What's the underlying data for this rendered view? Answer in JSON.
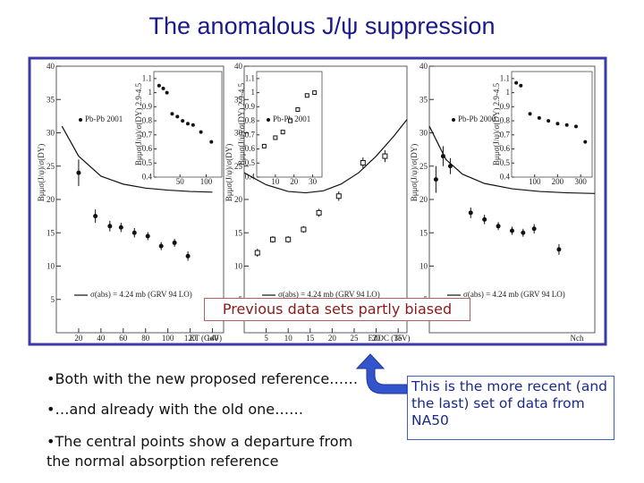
{
  "title": "The anomalous J/ψ suppression",
  "figure": {
    "y_label": "Bμμσ(J/ψ)/σ(DY)",
    "inset_y_label": "Bμμσ(J/ψ)/σ(DY) 2.9-4.5",
    "model": "σ(abs) = 4.24 mb (GRV 94 LO)",
    "panels": [
      {
        "x_label": "ET (GeV)",
        "legend": "Pb-Pb 2001",
        "xlim": [
          0,
          150
        ],
        "ylim": [
          0,
          40
        ],
        "xticks": [
          20,
          40,
          60,
          80,
          100,
          120,
          140
        ],
        "yticks": [
          5,
          10,
          15,
          20,
          25,
          30,
          35,
          40
        ],
        "points": {
          "x": [
            20,
            35,
            48,
            58,
            70,
            82,
            94,
            106,
            118
          ],
          "y": [
            24,
            17.5,
            16,
            15.8,
            15,
            14.5,
            13,
            13.5,
            11.5
          ],
          "err": [
            2,
            1,
            0.8,
            0.7,
            0.7,
            0.6,
            0.6,
            0.6,
            0.7
          ]
        },
        "curve": {
          "x": [
            5,
            20,
            40,
            60,
            80,
            100,
            120,
            140
          ],
          "y": [
            31,
            26.5,
            23.5,
            22.3,
            21.7,
            21.4,
            21.2,
            21.1
          ]
        },
        "inset": {
          "xlim": [
            0,
            130
          ],
          "ylim": [
            0.4,
            1.15
          ],
          "xticks": [
            50,
            100
          ],
          "yticks": [
            0.4,
            0.5,
            0.6,
            0.7,
            0.8,
            0.9,
            1,
            1.1
          ],
          "x": [
            10,
            18,
            25,
            35,
            45,
            55,
            65,
            75,
            90,
            110
          ],
          "y": [
            1.05,
            1.03,
            1.0,
            0.85,
            0.83,
            0.8,
            0.78,
            0.77,
            0.72,
            0.65
          ]
        }
      },
      {
        "x_label": "EZDC (TeV)",
        "legend": "Pb-Pb 2001",
        "xlim": [
          0,
          37
        ],
        "ylim": [
          0,
          40
        ],
        "xticks": [
          5,
          10,
          15,
          20,
          25,
          30,
          35
        ],
        "yticks": [
          5,
          10,
          15,
          20,
          25,
          30,
          35,
          40
        ],
        "points": {
          "x": [
            3,
            6.5,
            10,
            13.5,
            17,
            21.5,
            27,
            32
          ],
          "y": [
            12,
            14,
            14,
            15.5,
            18,
            20.5,
            25.5,
            26.5
          ],
          "err": [
            0.6,
            0.5,
            0.5,
            0.5,
            0.6,
            0.7,
            0.8,
            0.9
          ]
        },
        "curve": {
          "x": [
            0,
            5,
            10,
            14,
            18,
            22,
            26,
            30,
            34,
            37
          ],
          "y": [
            24,
            22.2,
            21.2,
            21,
            21.3,
            22.3,
            24,
            26.5,
            29.5,
            32
          ]
        },
        "inset": {
          "xlim": [
            0,
            35
          ],
          "ylim": [
            0.4,
            1.15
          ],
          "xticks": [
            10,
            20,
            30
          ],
          "yticks": [
            0.4,
            0.5,
            0.6,
            0.7,
            0.8,
            0.9,
            1,
            1.1
          ],
          "x": [
            4,
            10,
            14,
            18,
            22,
            27,
            31
          ],
          "y": [
            0.62,
            0.68,
            0.72,
            0.8,
            0.88,
            0.98,
            1.0
          ]
        }
      },
      {
        "x_label": "Nch",
        "legend": "Pb-Pb 2000",
        "xlim": [
          0,
          300
        ],
        "ylim": [
          0,
          40
        ],
        "xticks": [],
        "yticks": [
          5,
          10,
          15,
          20,
          25,
          30,
          35,
          40
        ],
        "points": {
          "x": [
            12,
            25,
            38,
            75,
            100,
            125,
            150,
            170,
            190,
            235
          ],
          "y": [
            23,
            26.5,
            25,
            18,
            17,
            16,
            15.3,
            15,
            15.6,
            12.5
          ],
          "err": [
            2,
            1.5,
            1.2,
            0.8,
            0.7,
            0.6,
            0.6,
            0.6,
            0.7,
            0.8
          ]
        },
        "curve": {
          "x": [
            0,
            30,
            60,
            100,
            150,
            200,
            250,
            300
          ],
          "y": [
            31,
            26,
            23.8,
            22.4,
            21.6,
            21.2,
            21,
            20.9
          ]
        },
        "inset": {
          "xlim": [
            0,
            350
          ],
          "ylim": [
            0.4,
            1.15
          ],
          "xticks": [
            100,
            200,
            300
          ],
          "yticks": [
            0.4,
            0.5,
            0.6,
            0.7,
            0.8,
            0.9,
            1,
            1.1
          ],
          "x": [
            20,
            40,
            80,
            120,
            160,
            200,
            240,
            280,
            320
          ],
          "y": [
            1.07,
            1.05,
            0.85,
            0.82,
            0.8,
            0.78,
            0.77,
            0.76,
            0.65
          ]
        }
      }
    ]
  },
  "banner": "Previous data sets partly biased",
  "bullets": [
    "•Both with the new proposed reference……",
    "•…and already with the old one……",
    "•The central points show a departure from the normal absorption reference"
  ],
  "callout": "This is the more recent (and the last) set of data from NA50"
}
